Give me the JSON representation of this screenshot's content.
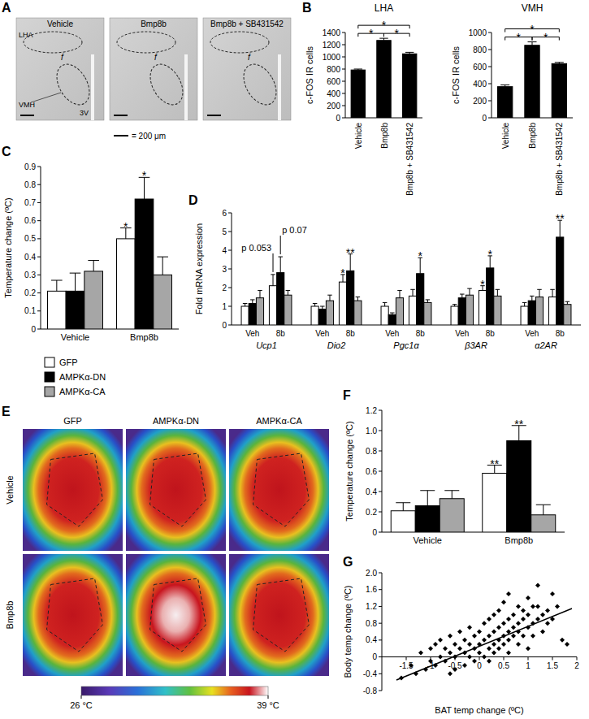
{
  "chart_data": [
    {
      "panel": "A",
      "type": "micrograph",
      "columns": [
        "Vehicle",
        "Bmp8b",
        "Bmp8b + SB431542"
      ],
      "regions": [
        "LHA",
        "VMH"
      ],
      "labels": [
        "f",
        "3V"
      ],
      "scale_bar": "= 200 μm"
    },
    {
      "panel": "B",
      "type": "bar",
      "title": "LHA",
      "y_label": "c-FOS IR cells",
      "categories": [
        "Vehicle",
        "Bmp8b",
        "Bmp8b + SB431542"
      ],
      "values": [
        785,
        1270,
        1050
      ],
      "errors": [
        15,
        35,
        25
      ],
      "color": "#000000",
      "ylim": [
        0,
        1400
      ],
      "yticks": [
        0,
        200,
        400,
        600,
        800,
        1000,
        1200,
        1400
      ],
      "annotations": [
        {
          "from": 0,
          "to": 2,
          "text": "*"
        },
        {
          "from": 0,
          "to": 1,
          "text": "*"
        },
        {
          "from": 1,
          "to": 2,
          "text": "*"
        }
      ]
    },
    {
      "type": "bar",
      "title": "VMH",
      "y_label": "c-FOS IR cells",
      "categories": [
        "Vehicle",
        "Bmp8b",
        "Bmp8b + SB431542"
      ],
      "values": [
        365,
        850,
        635
      ],
      "errors": [
        20,
        40,
        15
      ],
      "color": "#000000",
      "ylim": [
        0,
        1000
      ],
      "yticks": [
        0,
        200,
        400,
        600,
        800,
        1000
      ],
      "annotations": [
        {
          "from": 0,
          "to": 2,
          "text": "*"
        },
        {
          "from": 0,
          "to": 1,
          "text": "*"
        },
        {
          "from": 1,
          "to": 2,
          "text": "*"
        }
      ]
    },
    {
      "panel": "C",
      "type": "bar",
      "y_label": "Temperature change (ºC)",
      "categories": [
        "Vehicle",
        "Bmp8b"
      ],
      "series": [
        {
          "name": "GFP",
          "color": "#ffffff",
          "values": [
            0.21,
            0.5
          ],
          "errors": [
            0.06,
            0.06
          ]
        },
        {
          "name": "AMPKα-DN",
          "color": "#000000",
          "values": [
            0.21,
            0.72
          ],
          "errors": [
            0.1,
            0.12
          ]
        },
        {
          "name": "AMPKα-CA",
          "color": "#a6a6a6",
          "values": [
            0.32,
            0.3
          ],
          "errors": [
            0.06,
            0.1
          ]
        }
      ],
      "ylim": [
        0,
        0.9
      ],
      "yticks": [
        0,
        0.1,
        0.2,
        0.3,
        0.4,
        0.5,
        0.6,
        0.7,
        0.8,
        0.9
      ],
      "legend": "below",
      "annotations": [
        {
          "series": 0,
          "index": 1,
          "text": "*"
        },
        {
          "series": 1,
          "index": 1,
          "text": "*"
        }
      ]
    },
    {
      "panel": "D",
      "type": "bar",
      "y_label": "Fold mRNA expression",
      "categories": [
        "Veh",
        "8b",
        "Veh",
        "8b",
        "Veh",
        "8b",
        "Veh",
        "8b",
        "Veh",
        "8b"
      ],
      "groups": [
        "Ucp1",
        "Dio2",
        "Pgc1α",
        "β3AR",
        "α2AR"
      ],
      "series": [
        {
          "color": "#ffffff",
          "values": [
            1.0,
            2.1,
            1.0,
            2.3,
            1.0,
            1.55,
            1.0,
            1.85,
            1.0,
            1.5
          ],
          "errors": [
            0.15,
            0.6,
            0.15,
            0.4,
            0.2,
            0.35,
            0.1,
            0.25,
            0.2,
            0.4
          ]
        },
        {
          "color": "#000000",
          "values": [
            1.15,
            2.8,
            0.85,
            2.9,
            0.55,
            2.75,
            1.45,
            3.05,
            1.3,
            4.7
          ],
          "errors": [
            0.2,
            0.85,
            0.15,
            0.9,
            0.1,
            0.85,
            0.2,
            0.65,
            0.25,
            0.9
          ]
        },
        {
          "color": "#a6a6a6",
          "values": [
            1.45,
            1.6,
            1.3,
            1.3,
            1.45,
            1.2,
            1.6,
            1.55,
            1.5,
            1.1
          ],
          "errors": [
            0.4,
            0.25,
            0.3,
            0.2,
            0.4,
            0.15,
            0.35,
            0.35,
            0.4,
            0.15
          ]
        }
      ],
      "ylim": [
        0,
        6
      ],
      "yticks": [
        0,
        1,
        2,
        3,
        4,
        5,
        6
      ],
      "annotations": [
        {
          "series": 0,
          "index": 1,
          "text": "p 0.053"
        },
        {
          "series": 1,
          "index": 1,
          "text": "p 0.07"
        },
        {
          "series": 0,
          "index": 3,
          "text": "*"
        },
        {
          "series": 1,
          "index": 3,
          "text": "**"
        },
        {
          "series": 1,
          "index": 5,
          "text": "*"
        },
        {
          "series": 0,
          "index": 7,
          "text": "*"
        },
        {
          "series": 1,
          "index": 7,
          "text": "*"
        },
        {
          "series": 1,
          "index": 9,
          "text": "**"
        }
      ]
    },
    {
      "panel": "E",
      "type": "thermal_image",
      "columns": [
        "GFP",
        "AMPKα-DN",
        "AMPKα-CA"
      ],
      "rows": [
        "Vehicle",
        "Bmp8b"
      ],
      "colorbar_range": [
        26,
        39
      ],
      "colorbar_ticks": [
        {
          "value": 26,
          "label": "26 °C"
        },
        {
          "value": 39,
          "label": "39 °C"
        }
      ]
    },
    {
      "panel": "F",
      "type": "bar",
      "y_label": "Temperature change (ºC)",
      "categories": [
        "Vehicle",
        "Bmp8b"
      ],
      "series": [
        {
          "color": "#ffffff",
          "values": [
            0.21,
            0.58
          ],
          "errors": [
            0.08,
            0.08
          ]
        },
        {
          "color": "#000000",
          "values": [
            0.26,
            0.9
          ],
          "errors": [
            0.15,
            0.15
          ]
        },
        {
          "color": "#a6a6a6",
          "values": [
            0.33,
            0.17
          ],
          "errors": [
            0.08,
            0.1
          ]
        }
      ],
      "ylim": [
        0,
        1.2
      ],
      "yticks": [
        0,
        0.2,
        0.4,
        0.6,
        0.8,
        {
          "value": 1,
          "label": "1.0"
        },
        1.2
      ],
      "annotations": [
        {
          "series": 0,
          "index": 1,
          "text": "**"
        },
        {
          "series": 1,
          "index": 1,
          "text": "**"
        }
      ]
    },
    {
      "panel": "G",
      "type": "scatter",
      "x_label": "BAT temp change (ºC)",
      "y_label": "Body temp change (ºC)",
      "color": "#000000",
      "marker": "diamond",
      "x": [
        -1.6,
        -1.4,
        -1.3,
        -1.2,
        -1.1,
        -1.0,
        -1.0,
        -0.9,
        -0.9,
        -0.8,
        -0.8,
        -0.7,
        -0.7,
        -0.6,
        -0.6,
        -0.5,
        -0.5,
        -0.5,
        -0.4,
        -0.4,
        -0.3,
        -0.3,
        -0.3,
        -0.2,
        -0.2,
        -0.2,
        -0.1,
        -0.1,
        -0.1,
        0.0,
        0.0,
        0.0,
        0.1,
        0.1,
        0.1,
        0.2,
        0.2,
        0.2,
        0.2,
        0.3,
        0.3,
        0.3,
        0.3,
        0.4,
        0.4,
        0.4,
        0.4,
        0.5,
        0.5,
        0.5,
        0.5,
        0.6,
        0.6,
        0.6,
        0.6,
        0.7,
        0.7,
        0.7,
        0.8,
        0.8,
        0.8,
        0.8,
        0.9,
        0.9,
        0.9,
        1.0,
        1.0,
        1.0,
        1.1,
        1.1,
        1.1,
        1.2,
        1.2,
        1.3,
        1.3,
        1.4,
        1.4,
        1.5,
        1.6,
        1.7,
        1.8,
        1.2,
        0.6,
        -0.6,
        1.0,
        1.5
      ],
      "y": [
        -0.5,
        -0.2,
        -0.4,
        0.1,
        -0.3,
        0.2,
        -0.1,
        0.3,
        -0.2,
        0.0,
        0.4,
        -0.1,
        0.2,
        0.1,
        0.5,
        -0.3,
        0.3,
        0.0,
        0.2,
        0.6,
        0.1,
        -0.2,
        0.4,
        0.3,
        0.0,
        0.7,
        0.2,
        0.5,
        -0.1,
        0.3,
        0.6,
        0.1,
        0.4,
        0.0,
        0.8,
        0.2,
        0.5,
        0.9,
        -0.1,
        0.3,
        0.6,
        0.1,
        1.0,
        0.4,
        0.7,
        0.2,
        1.1,
        0.5,
        0.3,
        0.8,
        1.3,
        0.6,
        0.4,
        0.9,
        0.1,
        0.7,
        0.5,
        1.0,
        0.8,
        0.6,
        1.2,
        0.3,
        0.9,
        0.5,
        1.1,
        0.7,
        1.0,
        1.4,
        0.8,
        1.2,
        0.5,
        0.9,
        1.2,
        1.0,
        0.6,
        1.1,
        0.8,
        0.9,
        1.2,
        0.4,
        0.3,
        1.7,
        1.5,
        -0.4,
        0.2,
        1.5
      ],
      "trend_line": {
        "x": [
          -1.7,
          1.9
        ],
        "y": [
          -0.55,
          1.15
        ]
      },
      "xlim": [
        -2,
        2
      ],
      "xticks": [
        -1.5,
        -1,
        -0.5,
        0,
        0.5,
        1,
        1.5,
        2
      ],
      "ylim": [
        -0.8,
        2.0
      ],
      "yticks": [
        -0.8,
        -0.4,
        0,
        0.4,
        0.8,
        1.2,
        1.6,
        {
          "value": 2,
          "label": "2.0"
        }
      ]
    }
  ]
}
